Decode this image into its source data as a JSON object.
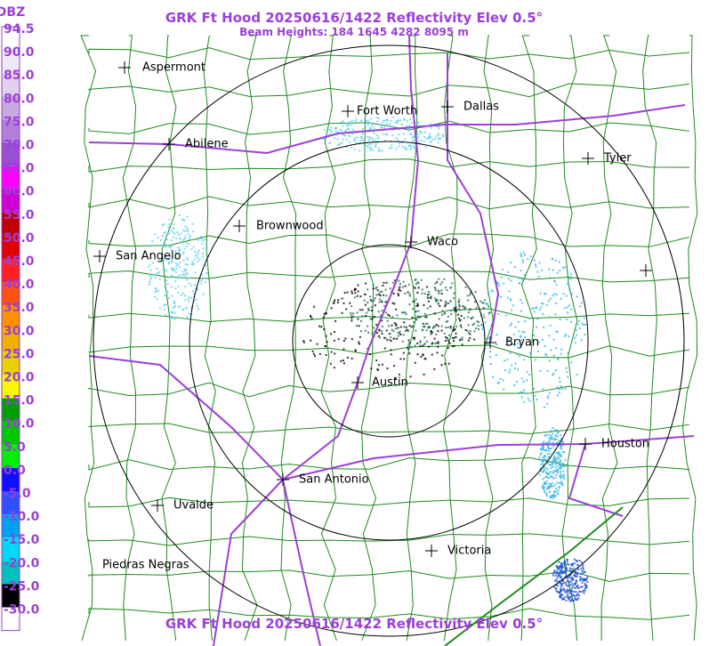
{
  "title": "GRK Ft Hood 20250616/1422 Reflectivity Elev 0.5°",
  "subtitle": "Beam Heights: 184 1645 4282 8095 m",
  "footer": "GRK Ft Hood 20250616/1422 Reflectivity Elev 0.5°",
  "legend": {
    "unit": "DBZ",
    "labels": [
      "94.5",
      "90.0",
      "85.0",
      "80.0",
      "75.0",
      "70.0",
      "65.0",
      "60.0",
      "55.0",
      "50.0",
      "45.0",
      "40.0",
      "35.0",
      "30.0",
      "25.0",
      "20.0",
      "15.0",
      "10.0",
      "5.0",
      "0.0",
      "-5.0",
      "-10.0",
      "-15.0",
      "-20.0",
      "-25.0",
      "-30.0"
    ]
  },
  "cities": [
    "Aspermont",
    "Abilene",
    "Fort Worth",
    "Dallas",
    "Tyler",
    "Brownwood",
    "Waco",
    "San Angelo",
    "Bryan",
    "Austin",
    "Houston",
    "San Antonio",
    "Uvalde",
    "Victoria",
    "Piedras Negras"
  ]
}
